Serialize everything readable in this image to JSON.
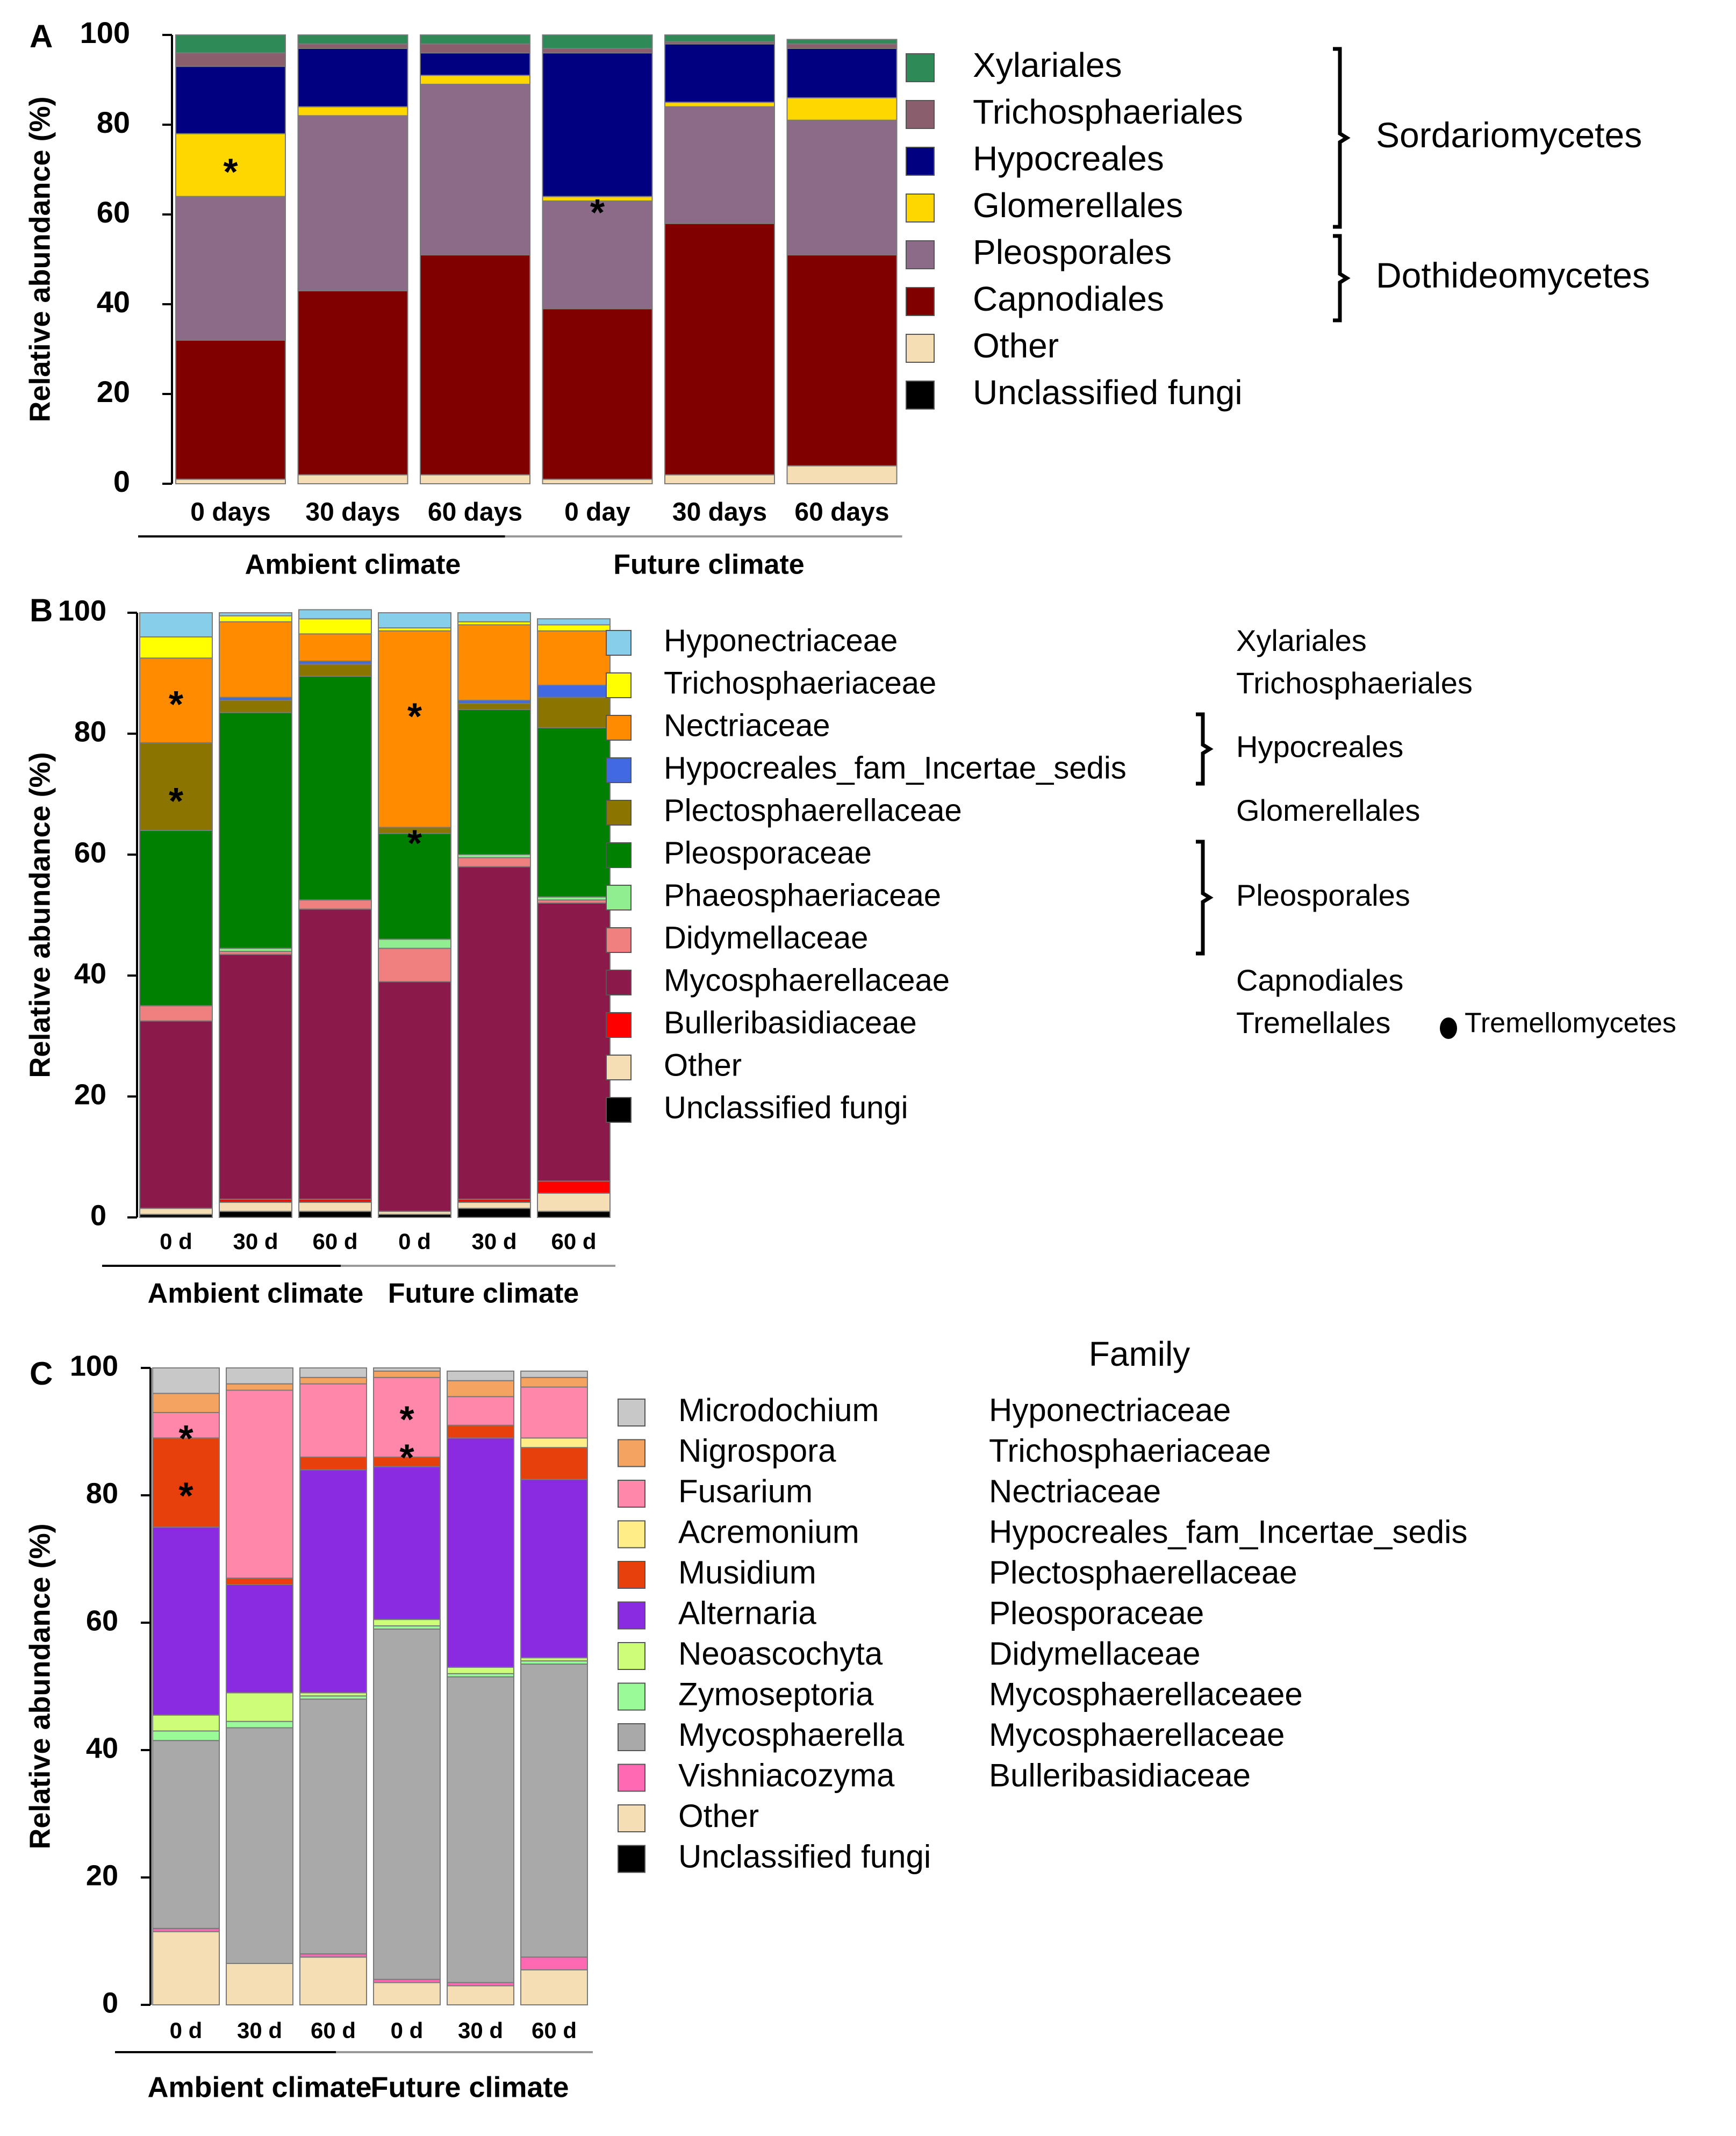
{
  "chart_data": [
    {
      "panel_label": "A",
      "type": "bar",
      "stacked": true,
      "ylabel": "Relative abundance (%)",
      "ylim": [
        0,
        100
      ],
      "yticks": [
        0,
        20,
        40,
        60,
        80,
        100
      ],
      "categories": [
        "0 days",
        "30 days",
        "60 days",
        "0 day",
        "30 days",
        "60 days"
      ],
      "groups": [
        {
          "label": "Ambient climate",
          "span": [
            0,
            2
          ]
        },
        {
          "label": "Future climate",
          "span": [
            3,
            5
          ]
        }
      ],
      "series": [
        {
          "name": "Unclassified fungi",
          "color": "#000000",
          "values": [
            0,
            0,
            0,
            0,
            0,
            0
          ]
        },
        {
          "name": "Other",
          "color": "#f5deb3",
          "values": [
            1,
            2,
            2,
            1,
            2,
            4
          ]
        },
        {
          "name": "Capnodiales",
          "color": "#800000",
          "values": [
            31,
            41,
            49,
            38,
            56,
            47
          ]
        },
        {
          "name": "Pleosporales",
          "color": "#8b6b88",
          "values": [
            32,
            39,
            38,
            24,
            26,
            30
          ]
        },
        {
          "name": "Glomerellales",
          "color": "#ffd700",
          "values": [
            14,
            2,
            2,
            1,
            1,
            5
          ]
        },
        {
          "name": "Hypocreales",
          "color": "#000080",
          "values": [
            15,
            13,
            5,
            32,
            13,
            11
          ]
        },
        {
          "name": "Trichosphaeriales",
          "color": "#8b5e6e",
          "values": [
            3,
            1,
            2,
            1,
            0.5,
            1
          ]
        },
        {
          "name": "Xylariales",
          "color": "#2e8b57",
          "values": [
            4,
            2,
            2,
            3,
            1.5,
            1
          ]
        }
      ],
      "legend": [
        "Xylariales",
        "Trichosphaeriales",
        "Hypocreales",
        "Glomerellales",
        "Pleosporales",
        "Capnodiales",
        "Other",
        "Unclassified fungi"
      ],
      "legend_classes": [
        {
          "label": "Sordariomycetes",
          "span": [
            0,
            3
          ]
        },
        {
          "label": "Dothideomycetes",
          "span": [
            4,
            5
          ]
        }
      ],
      "annotations": [
        {
          "text": "*",
          "category": 0,
          "value": 71
        },
        {
          "text": "*",
          "category": 3,
          "value": 62
        }
      ]
    },
    {
      "panel_label": "B",
      "type": "bar",
      "stacked": true,
      "ylabel": "Relative abundance (%)",
      "ylim": [
        0,
        100
      ],
      "yticks": [
        0,
        20,
        40,
        60,
        80,
        100
      ],
      "categories": [
        "0 d",
        "30 d",
        "60 d",
        "0 d",
        "30 d",
        "60 d"
      ],
      "groups": [
        {
          "label": "Ambient climate",
          "span": [
            0,
            2
          ]
        },
        {
          "label": "Future climate",
          "span": [
            3,
            5
          ]
        }
      ],
      "series": [
        {
          "name": "Unclassified fungi",
          "color": "#000000",
          "values": [
            0.5,
            1,
            1,
            0.5,
            1.5,
            1
          ]
        },
        {
          "name": "Other",
          "color": "#f5deb3",
          "values": [
            1,
            1.5,
            1.5,
            0.5,
            1,
            3
          ]
        },
        {
          "name": "Bulleribasidiaceae",
          "color": "#ff0000",
          "values": [
            0,
            0.5,
            0.5,
            0,
            0.5,
            2
          ]
        },
        {
          "name": "Mycosphaerellaceae",
          "color": "#8b1a4a",
          "values": [
            31,
            40.5,
            48,
            38,
            55,
            46
          ]
        },
        {
          "name": "Didymellaceae",
          "color": "#f08080",
          "values": [
            2.5,
            0.5,
            1.5,
            5.5,
            1.5,
            0.5
          ]
        },
        {
          "name": "Phaeosphaeriaceae",
          "color": "#90ee90",
          "values": [
            0,
            0.5,
            0,
            1.5,
            0.5,
            0.5
          ]
        },
        {
          "name": "Pleosporaceae",
          "color": "#008000",
          "values": [
            29,
            39,
            37,
            17.5,
            24,
            28
          ]
        },
        {
          "name": "Plectosphaerellaceae",
          "color": "#8b7500",
          "values": [
            14.5,
            2,
            2,
            1,
            1,
            5
          ]
        },
        {
          "name": "Hypocreales_fam_Incertae_sedis",
          "color": "#4169e1",
          "values": [
            0,
            0.5,
            0.5,
            0,
            0.5,
            2
          ]
        },
        {
          "name": "Nectriaceae",
          "color": "#ff8c00",
          "values": [
            14,
            12.5,
            4.5,
            32.5,
            12.5,
            9
          ]
        },
        {
          "name": "Trichosphaeriaceae",
          "color": "#ffff00",
          "values": [
            3.5,
            1,
            2.5,
            0.5,
            0.5,
            1
          ]
        },
        {
          "name": "Hyponectriaceae",
          "color": "#87ceeb",
          "values": [
            4,
            0.5,
            1.5,
            2.5,
            1.5,
            1
          ]
        }
      ],
      "legend": [
        "Hyponectriaceae",
        "Trichosphaeriaceae",
        "Nectriaceae",
        "Hypocreales_fam_Incertae_sedis",
        "Plectosphaerellaceae",
        "Pleosporaceae",
        "Phaeosphaeriaceae",
        "Didymellaceae",
        "Mycosphaerellaceae",
        "Bulleribasidiaceae",
        "Other",
        "Unclassified fungi"
      ],
      "legend_orders": [
        {
          "label": "Xylariales",
          "row": 0
        },
        {
          "label": "Trichosphaeriales",
          "row": 1
        },
        {
          "label": "Hypocreales",
          "span": [
            2,
            3
          ]
        },
        {
          "label": "Glomerellales",
          "row": 4
        },
        {
          "label": "Pleosporales",
          "span": [
            5,
            7
          ]
        },
        {
          "label": "Capnodiales",
          "row": 8
        },
        {
          "label": "Tremellales",
          "row": 9
        }
      ],
      "extra_class": "Tremellomycetes",
      "annotations": [
        {
          "text": "*",
          "category": 0,
          "value": 86
        },
        {
          "text": "*",
          "category": 0,
          "value": 70
        },
        {
          "text": "*",
          "category": 3,
          "value": 84
        },
        {
          "text": "*",
          "category": 3,
          "value": 63
        }
      ]
    },
    {
      "panel_label": "C",
      "type": "bar",
      "stacked": true,
      "ylabel": "Relative abundance (%)",
      "ylim": [
        0,
        100
      ],
      "yticks": [
        0,
        20,
        40,
        60,
        80,
        100
      ],
      "categories": [
        "0 d",
        "30 d",
        "60 d",
        "0 d",
        "30 d",
        "60 d"
      ],
      "groups": [
        {
          "label": "Ambient climate",
          "span": [
            0,
            2
          ]
        },
        {
          "label": "Future climate",
          "span": [
            3,
            5
          ]
        }
      ],
      "series": [
        {
          "name": "Unclassified fungi",
          "color": "#000000",
          "values": [
            0,
            0,
            0,
            0,
            0,
            0
          ]
        },
        {
          "name": "Other",
          "color": "#f5deb3",
          "values": [
            11.5,
            6.5,
            7.5,
            3.5,
            3,
            5.5
          ]
        },
        {
          "name": "Vishniacozyma",
          "color": "#ff69b4",
          "values": [
            0.5,
            0,
            0.5,
            0.5,
            0.5,
            2
          ]
        },
        {
          "name": "Mycosphaerella",
          "color": "#a9a9a9",
          "values": [
            29.5,
            37,
            40,
            55,
            48,
            46
          ]
        },
        {
          "name": "Zymoseptoria",
          "color": "#98fb98",
          "values": [
            1.5,
            1,
            0.5,
            0.5,
            0.5,
            0.5
          ]
        },
        {
          "name": "Neoascochyta",
          "color": "#ccff77",
          "values": [
            2.5,
            4.5,
            0.5,
            1,
            1,
            0.5
          ]
        },
        {
          "name": "Alternaria",
          "color": "#8a2be2",
          "values": [
            29.5,
            17,
            35,
            24,
            36,
            28
          ]
        },
        {
          "name": "Musidium",
          "color": "#e8400c",
          "values": [
            14,
            1,
            2,
            1.5,
            2,
            5
          ]
        },
        {
          "name": "Acremonium",
          "color": "#ffee88",
          "values": [
            0,
            0,
            0,
            0,
            0,
            1.5
          ]
        },
        {
          "name": "Fusarium",
          "color": "#ff88aa",
          "values": [
            4,
            29.5,
            11.5,
            12.5,
            4.5,
            8
          ]
        },
        {
          "name": "Nigrospora",
          "color": "#f4a460",
          "values": [
            3,
            1,
            1,
            1,
            2.5,
            1.5
          ]
        },
        {
          "name": "Microdochium",
          "color": "#c8c8c8",
          "values": [
            4,
            2.5,
            1.5,
            0.5,
            1.5,
            1
          ]
        }
      ],
      "legend": [
        "Microdochium",
        "Nigrospora",
        "Fusarium",
        "Acremonium",
        "Musidium",
        "Alternaria",
        "Neoascochyta",
        "Zymoseptoria",
        "Mycosphaerella",
        "Vishniacozyma",
        "Other",
        "Unclassified fungi"
      ],
      "family_header": "Family",
      "families": [
        "Hyponectriaceae",
        "Trichosphaeriaceae",
        "Nectriaceae",
        "Hypocreales_fam_Incertae_sedis",
        "Plectosphaerellaceae",
        "Pleosporaceae",
        "Didymellaceae",
        "Mycosphaerellaceaee",
        "Mycosphaerellaceae",
        "Bulleribasidiaceae"
      ],
      "annotations": [
        {
          "text": "*",
          "category": 0,
          "value": 90
        },
        {
          "text": "*",
          "category": 0,
          "value": 81
        },
        {
          "text": "*",
          "category": 3,
          "value": 93
        },
        {
          "text": "*",
          "category": 3,
          "value": 87
        }
      ]
    }
  ]
}
